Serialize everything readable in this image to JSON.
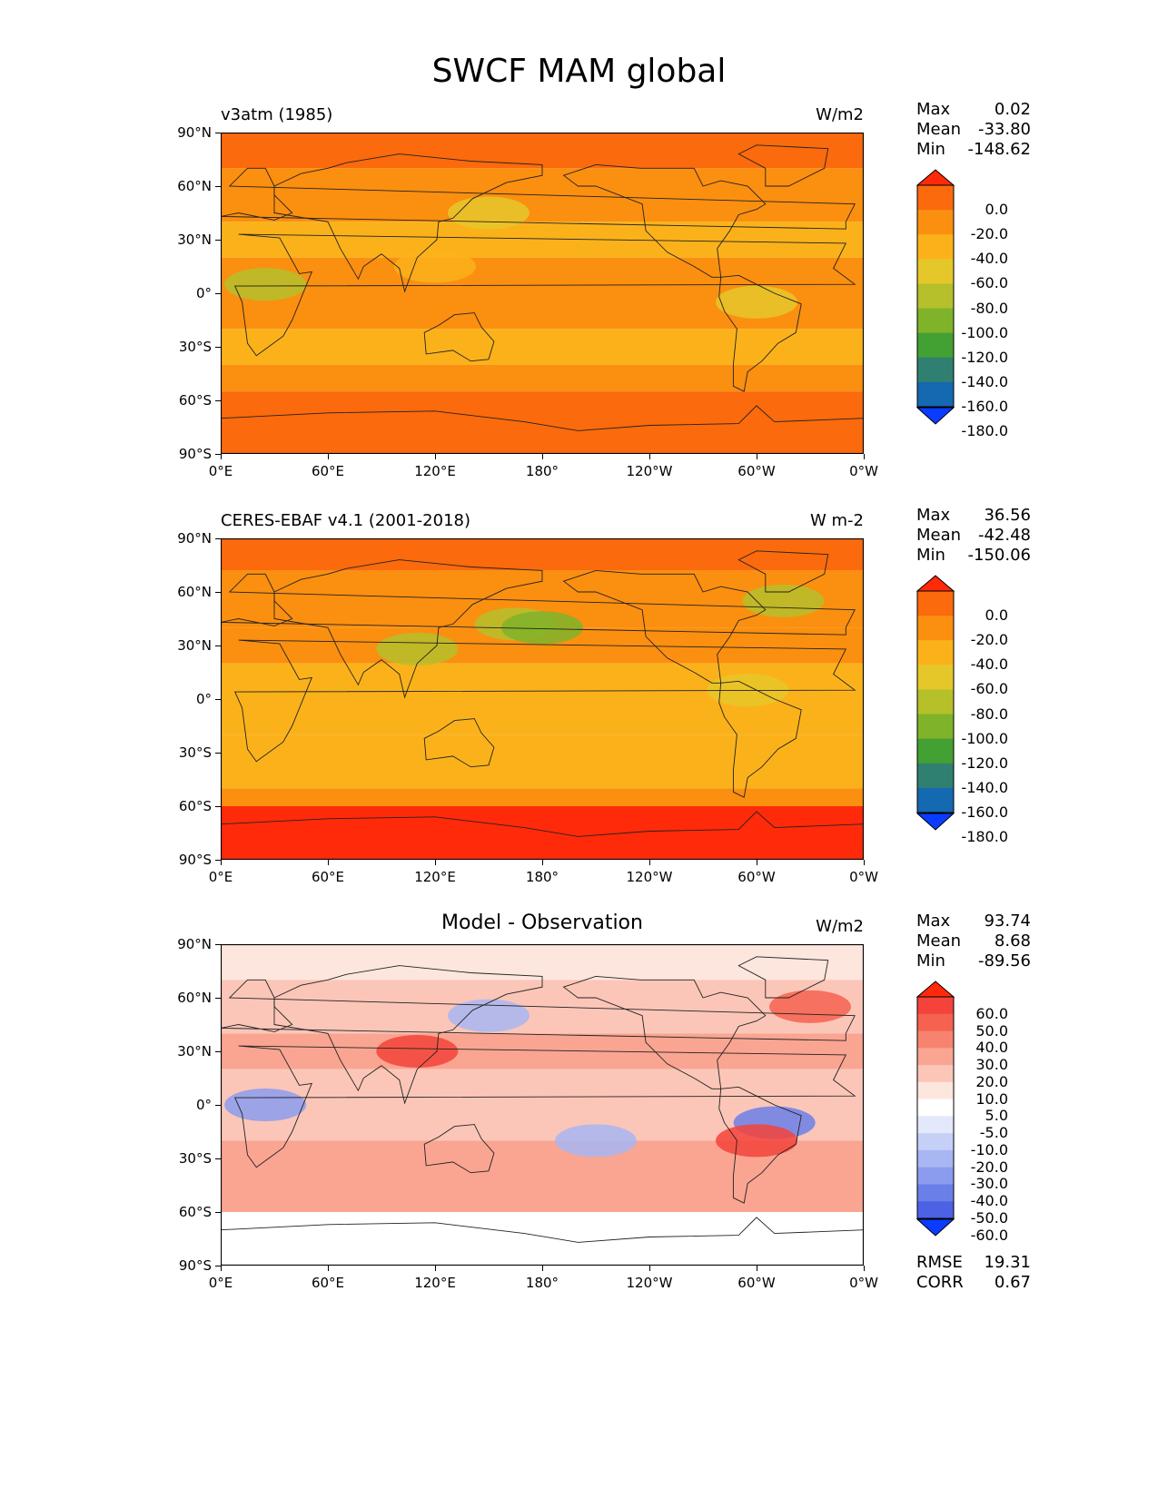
{
  "title": "SWCF MAM global",
  "lat_ticks": [
    "90°N",
    "60°N",
    "30°N",
    "0°",
    "30°S",
    "60°S",
    "90°S"
  ],
  "lon_ticks": [
    "0°E",
    "60°E",
    "120°E",
    "180°",
    "120°W",
    "60°W",
    "0°W"
  ],
  "panels": [
    {
      "title": "v3atm (1985)",
      "units": "W/m2",
      "stats": [
        {
          "label": "Max",
          "value": "0.02"
        },
        {
          "label": "Mean",
          "value": "-33.80"
        },
        {
          "label": "Min",
          "value": "-148.62"
        }
      ],
      "colorbar": {
        "labels": [
          "0.0",
          "-20.0",
          "-40.0",
          "-60.0",
          "-80.0",
          "-100.0",
          "-120.0",
          "-140.0",
          "-160.0",
          "-180.0"
        ],
        "colors": [
          "#ff2a0a",
          "#fb6a0c",
          "#fb8f0f",
          "#fbb21a",
          "#e6c72a",
          "#b5c02a",
          "#7fb32a",
          "#43a032",
          "#2f8070",
          "#1469b0",
          "#0a3cff"
        ]
      }
    },
    {
      "title": "CERES-EBAF v4.1 (2001-2018)",
      "units": "W m-2",
      "stats": [
        {
          "label": "Max",
          "value": "36.56"
        },
        {
          "label": "Mean",
          "value": "-42.48"
        },
        {
          "label": "Min",
          "value": "-150.06"
        }
      ],
      "colorbar": {
        "labels": [
          "0.0",
          "-20.0",
          "-40.0",
          "-60.0",
          "-80.0",
          "-100.0",
          "-120.0",
          "-140.0",
          "-160.0",
          "-180.0"
        ],
        "colors": [
          "#ff2a0a",
          "#fb6a0c",
          "#fb8f0f",
          "#fbb21a",
          "#e6c72a",
          "#b5c02a",
          "#7fb32a",
          "#43a032",
          "#2f8070",
          "#1469b0",
          "#0a3cff"
        ]
      }
    },
    {
      "title": "Model - Observation",
      "units": "W/m2",
      "stats": [
        {
          "label": "Max",
          "value": "93.74"
        },
        {
          "label": "Mean",
          "value": "8.68"
        },
        {
          "label": "Min",
          "value": "-89.56"
        }
      ],
      "colorbar": {
        "labels": [
          "60.0",
          "50.0",
          "40.0",
          "30.0",
          "20.0",
          "10.0",
          "5.0",
          "-5.0",
          "-10.0",
          "-20.0",
          "-30.0",
          "-40.0",
          "-50.0",
          "-60.0"
        ],
        "colors": [
          "#ff2a0a",
          "#f4433a",
          "#f5624f",
          "#f7836f",
          "#f9a592",
          "#fbc6b8",
          "#fde6dd",
          "#ffffff",
          "#e3e8fb",
          "#c6d0f7",
          "#a8b6f2",
          "#8b9cee",
          "#6b7fe8",
          "#4b62e4",
          "#0a3cff"
        ]
      },
      "metrics": [
        {
          "label": "RMSE",
          "value": "19.31"
        },
        {
          "label": "CORR",
          "value": "0.67"
        }
      ]
    }
  ]
}
